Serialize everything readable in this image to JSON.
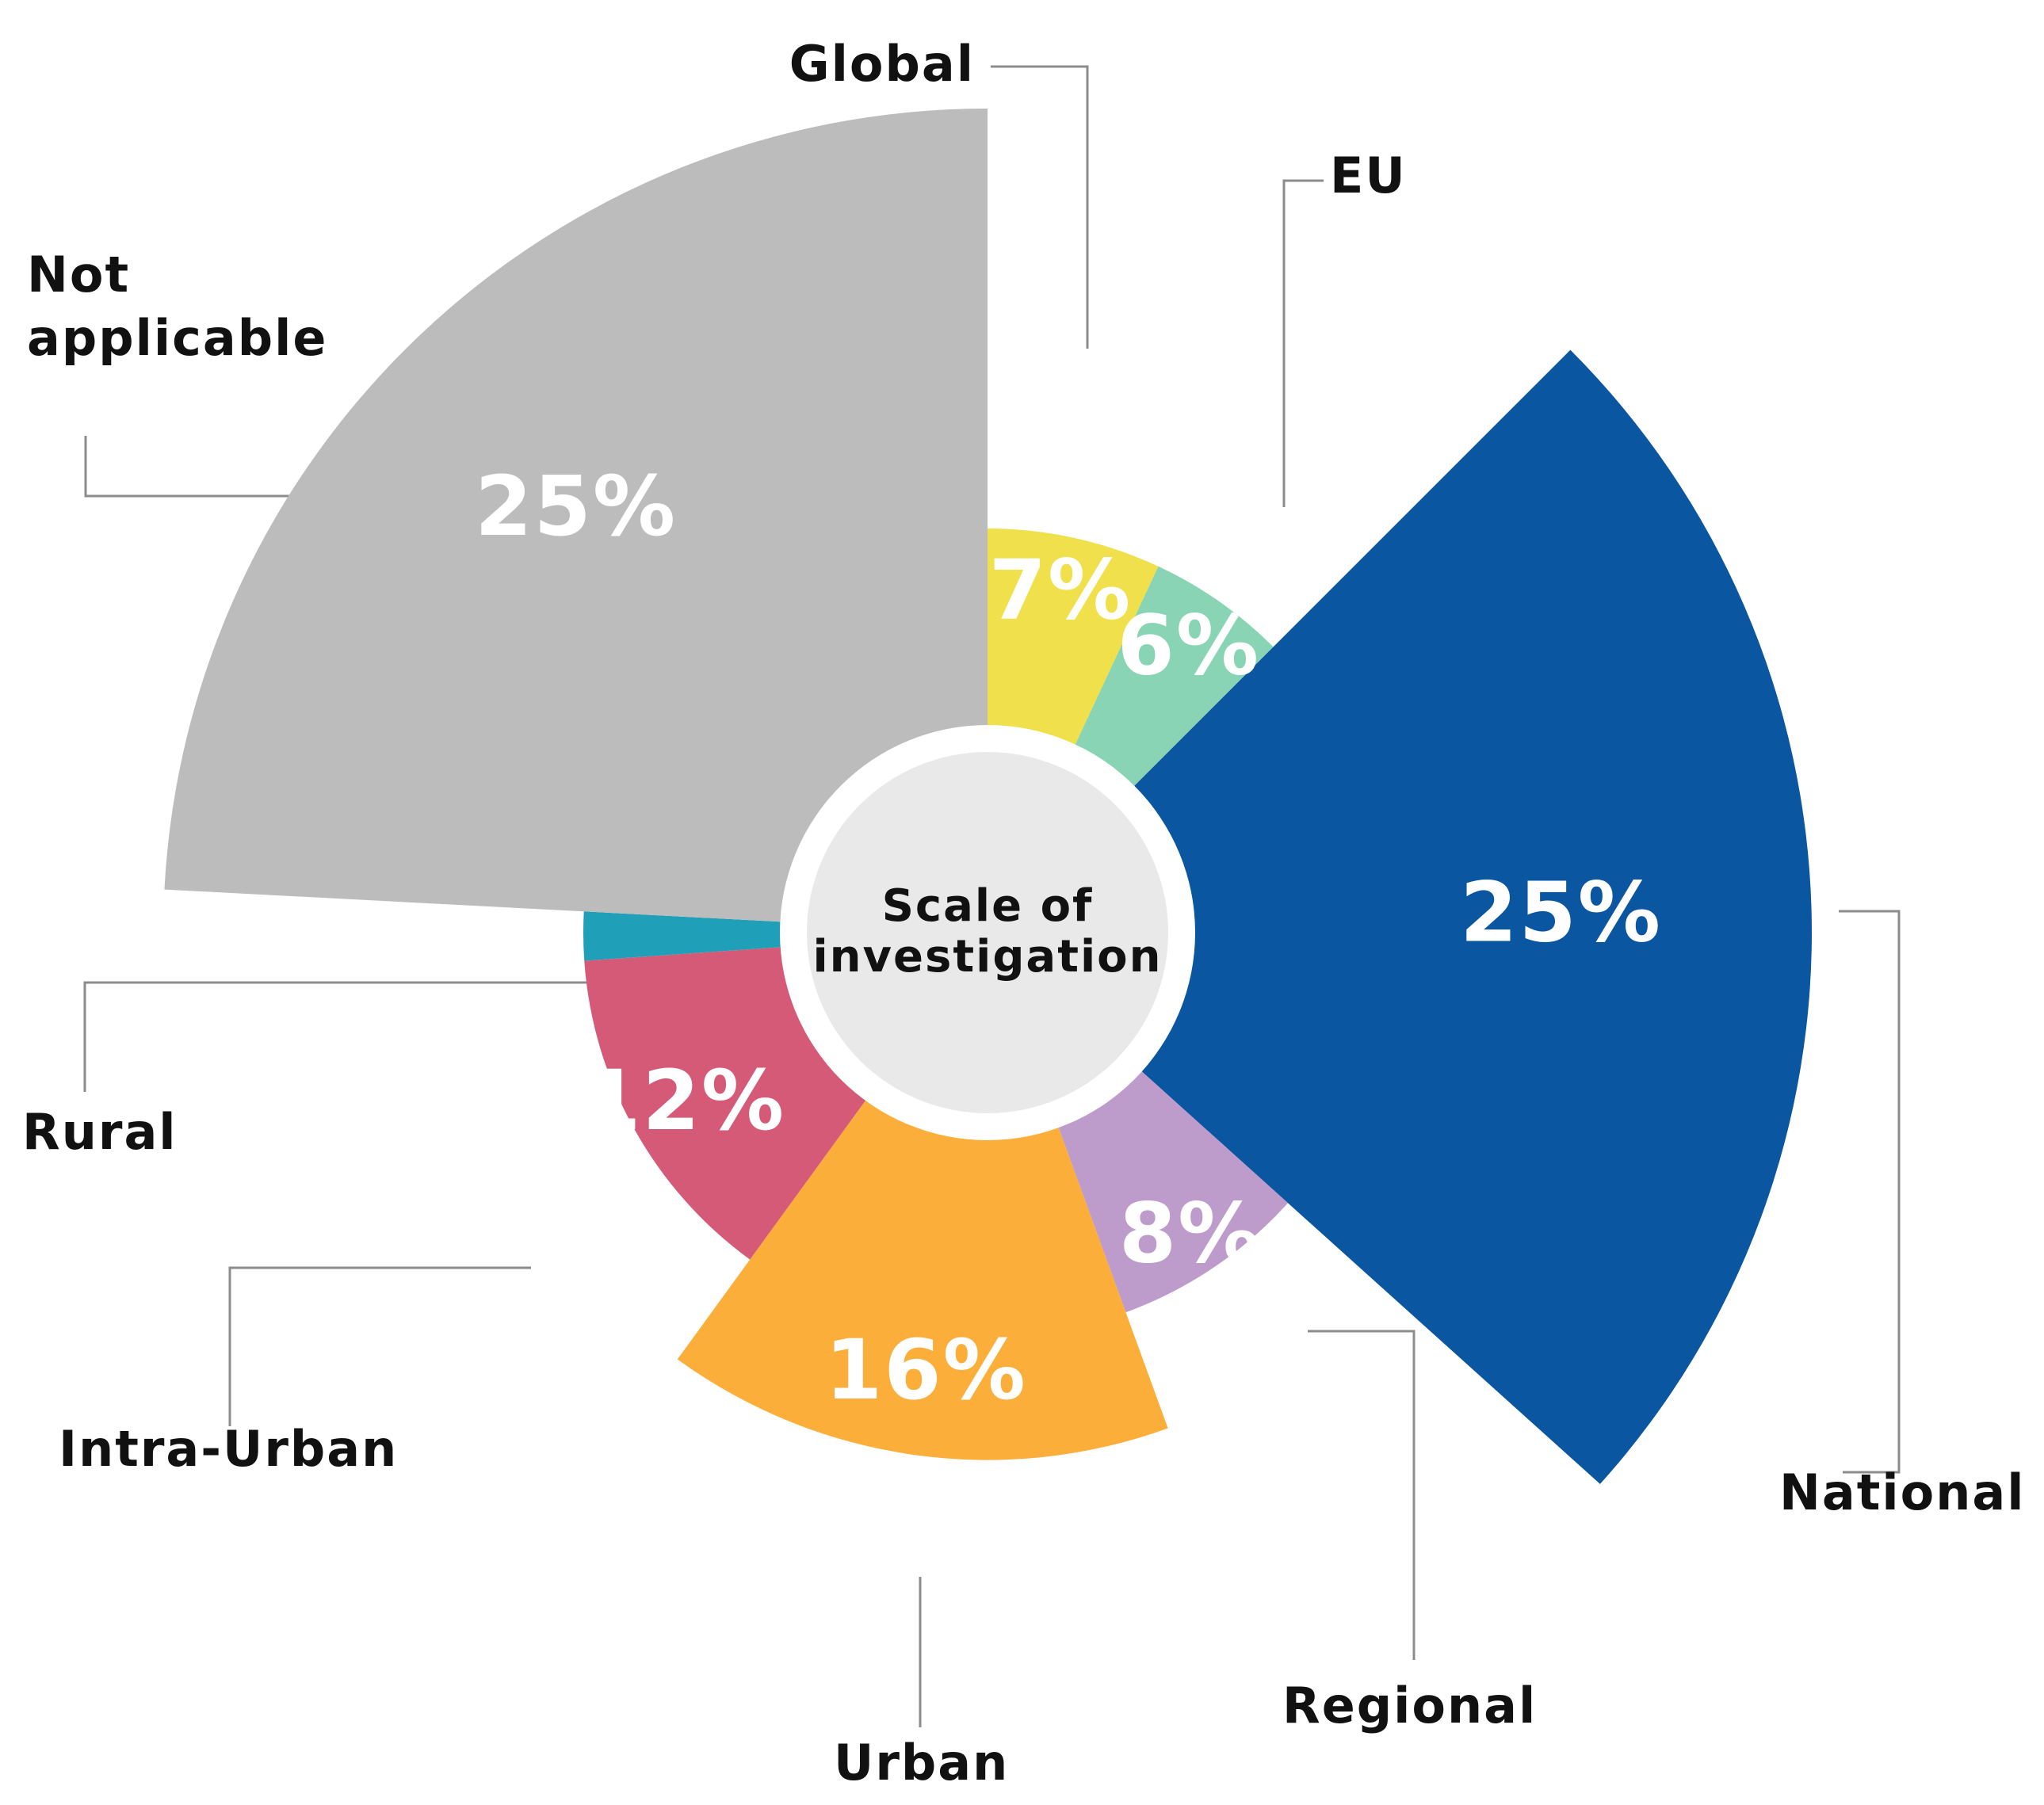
{
  "chart_data": {
    "type": "pie",
    "variant": "polar-area",
    "title": "",
    "center_label": "Scale of investigation",
    "center_label_lines": [
      "Scale of",
      "investigation"
    ],
    "unit": "%",
    "legend_placement": "callout labels around the chart",
    "categories": [
      "Global",
      "EU",
      "National",
      "Regional",
      "Urban",
      "Intra-Urban",
      "Rural",
      "Not applicable"
    ],
    "values": [
      7,
      6,
      25,
      8,
      16,
      12,
      1,
      25
    ],
    "value_labels": [
      "7%",
      "6%",
      "25%",
      "8%",
      "16%",
      "12%",
      "",
      "25%"
    ],
    "label_lines": [
      [
        "Global"
      ],
      [
        "EU"
      ],
      [
        "National"
      ],
      [
        "Regional"
      ],
      [
        "Urban"
      ],
      [
        "Intra-Urban"
      ],
      [
        "Rural"
      ],
      [
        "Not",
        "applicable"
      ]
    ],
    "colors": [
      "#f0e04c",
      "#89d4b4",
      "#0a56a0",
      "#bd9ccc",
      "#fbae3a",
      "#d45a78",
      "#1fa0b8",
      "#bcbcbc"
    ],
    "value_label_color": "#ffffff",
    "center_fill": "#e9e9e9"
  }
}
